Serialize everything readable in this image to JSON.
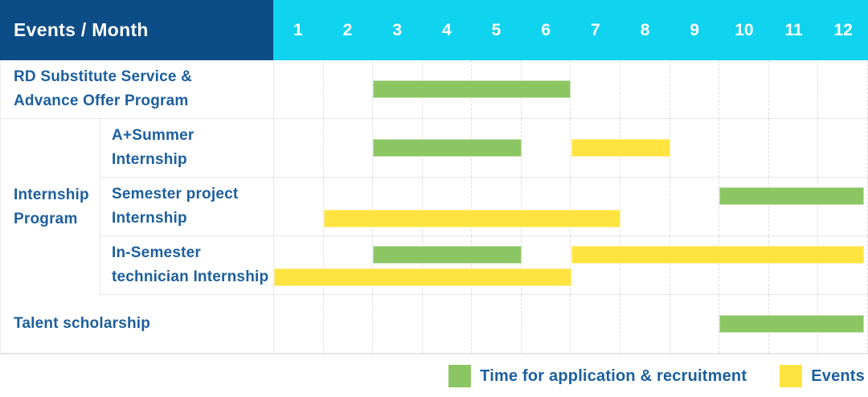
{
  "header": {
    "label": "Events / Month",
    "months": [
      "1",
      "2",
      "3",
      "4",
      "5",
      "6",
      "7",
      "8",
      "9",
      "10",
      "11",
      "12"
    ]
  },
  "colors": {
    "header_bg": "#0d4d87",
    "months_bg": "#10d3ef",
    "label_text": "#1c5f9f",
    "green": "#8cc663",
    "yellow": "#ffe33f"
  },
  "legend": {
    "items": [
      {
        "label": "Time for application & recruitment",
        "color_key": "green"
      },
      {
        "label": "Events",
        "color_key": "yellow"
      }
    ]
  },
  "chart_data": {
    "type": "table",
    "subtype": "gantt-schedule",
    "title": "Events / Month",
    "x_categories": [
      "1",
      "2",
      "3",
      "4",
      "5",
      "6",
      "7",
      "8",
      "9",
      "10",
      "11",
      "12"
    ],
    "x_axis_range": [
      1,
      12
    ],
    "legend_position": "bottom-right",
    "series_legend": [
      {
        "name": "Time for application & recruitment",
        "color": "#8cc663"
      },
      {
        "name": "Events",
        "color": "#ffe33f"
      }
    ],
    "groups": [
      {
        "label": "Internship Program",
        "row_indexes": [
          1,
          2,
          3
        ]
      }
    ],
    "rows": [
      {
        "group": null,
        "label": "RD Substitute Service & Advance Offer Program",
        "label_lines": [
          "RD Substitute Service &",
          "Advance Offer Program"
        ],
        "bars": [
          {
            "series": "Time for application & recruitment",
            "color_key": "green",
            "start_month": 3,
            "end_month": 6,
            "lane": "center"
          }
        ]
      },
      {
        "group": "Internship Program",
        "label": "A+Summer Internship",
        "label_lines": [
          "A+Summer",
          "Internship"
        ],
        "bars": [
          {
            "series": "Time for application & recruitment",
            "color_key": "green",
            "start_month": 3,
            "end_month": 5,
            "lane": "center"
          },
          {
            "series": "Events",
            "color_key": "yellow",
            "start_month": 7,
            "end_month": 8,
            "lane": "center"
          }
        ]
      },
      {
        "group": "Internship Program",
        "label": "Semester project Internship",
        "label_lines": [
          "Semester project",
          "Internship"
        ],
        "bars": [
          {
            "series": "Time for application & recruitment",
            "color_key": "green",
            "start_month": 10,
            "end_month": 12,
            "lane": "upper"
          },
          {
            "series": "Events",
            "color_key": "yellow",
            "start_month": 2,
            "end_month": 7,
            "lane": "lower"
          }
        ]
      },
      {
        "group": "Internship Program",
        "label": "In-Semester technician Internship",
        "label_lines": [
          "In-Semester",
          "technician Internship"
        ],
        "bars": [
          {
            "series": "Time for application & recruitment",
            "color_key": "green",
            "start_month": 3,
            "end_month": 5,
            "lane": "upper"
          },
          {
            "series": "Events",
            "color_key": "yellow",
            "start_month": 7,
            "end_month": 12,
            "lane": "upper"
          },
          {
            "series": "Events",
            "color_key": "yellow",
            "start_month": 1,
            "end_month": 6,
            "lane": "lower"
          }
        ]
      },
      {
        "group": null,
        "label": "Talent scholarship",
        "label_lines": [
          "Talent scholarship"
        ],
        "bars": [
          {
            "series": "Time for application & recruitment",
            "color_key": "green",
            "start_month": 10,
            "end_month": 12,
            "lane": "center"
          }
        ]
      }
    ]
  }
}
